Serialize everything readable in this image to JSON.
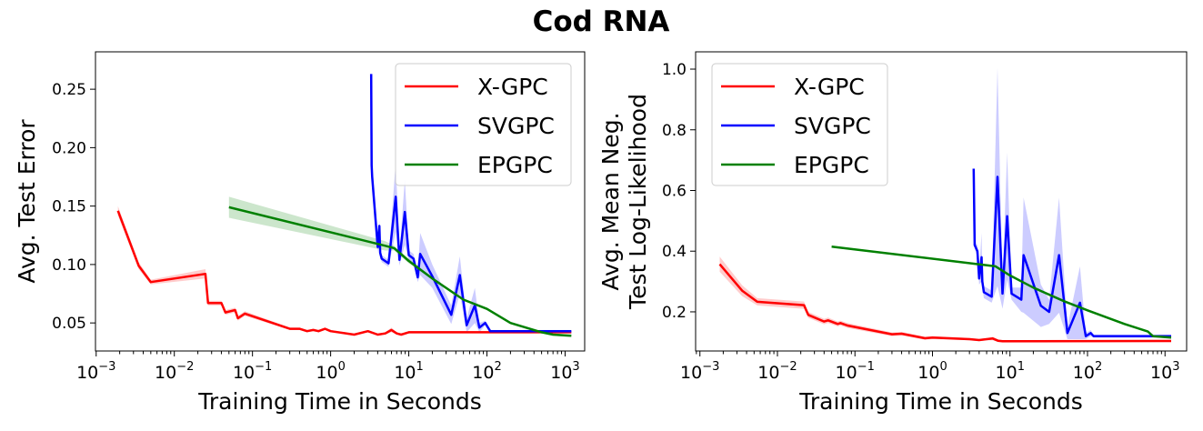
{
  "title": "Cod RNA",
  "chart_data": [
    {
      "type": "line",
      "xlabel": "Training Time in Seconds",
      "ylabel": [
        "Avg. Test Error"
      ],
      "xscale": "log",
      "xlim": [
        0.00098,
        1780
      ],
      "ylim": [
        0.026,
        0.282
      ],
      "xticks": [
        {
          "base": "10",
          "exp": "−3"
        },
        {
          "base": "10",
          "exp": "−2"
        },
        {
          "base": "10",
          "exp": "−1"
        },
        {
          "base": "10",
          "exp": "0"
        },
        {
          "base": "10",
          "exp": "1"
        },
        {
          "base": "10",
          "exp": "2"
        },
        {
          "base": "10",
          "exp": "3"
        }
      ],
      "yticks": [
        "0.05",
        "0.10",
        "0.15",
        "0.20",
        "0.25"
      ],
      "legend_position": "top-right",
      "grid": false,
      "series": [
        {
          "name": "X-GPC",
          "color": "#ff0000",
          "x": [
            0.0019,
            0.0035,
            0.005,
            0.025,
            0.027,
            0.04,
            0.045,
            0.06,
            0.065,
            0.08,
            0.3,
            0.4,
            0.5,
            0.6,
            0.7,
            0.85,
            1,
            2,
            3,
            4,
            5,
            6,
            7,
            8,
            10,
            1200
          ],
          "y": [
            0.146,
            0.099,
            0.085,
            0.092,
            0.067,
            0.067,
            0.059,
            0.061,
            0.054,
            0.058,
            0.045,
            0.045,
            0.043,
            0.044,
            0.043,
            0.045,
            0.043,
            0.04,
            0.043,
            0.04,
            0.041,
            0.044,
            0.041,
            0.04,
            0.042,
            0.042
          ],
          "spread": [
            0.004,
            0.003,
            0.002,
            0.004,
            0.002,
            0.002,
            0.002,
            0.002,
            0.002,
            0.002,
            0.001,
            0.001,
            0.001,
            0.001,
            0.001,
            0.001,
            0.001,
            0.001,
            0.001,
            0.001,
            0.001,
            0.002,
            0.001,
            0.001,
            0.001,
            0.001
          ]
        },
        {
          "name": "SVGPC",
          "color": "#0000ff",
          "x": [
            3.3,
            3.35,
            3.4,
            4,
            4.2,
            4.3,
            4.5,
            5.5,
            6.8,
            7.6,
            8.9,
            10,
            11.5,
            13,
            14,
            20,
            35,
            45,
            55,
            70,
            80,
            95,
            110,
            1200
          ],
          "y": [
            0.263,
            0.185,
            0.175,
            0.115,
            0.133,
            0.11,
            0.105,
            0.101,
            0.158,
            0.104,
            0.145,
            0.108,
            0.105,
            0.089,
            0.109,
            0.09,
            0.057,
            0.091,
            0.048,
            0.065,
            0.046,
            0.05,
            0.043,
            0.043
          ],
          "spread": [
            0,
            0.002,
            0.01,
            0.005,
            0.005,
            0.003,
            0.003,
            0.003,
            0.03,
            0.005,
            0.028,
            0.004,
            0.004,
            0.004,
            0.018,
            0.01,
            0.008,
            0.016,
            0.006,
            0.015,
            0.004,
            0.002,
            0.001,
            0.001
          ]
        },
        {
          "name": "EPGPC",
          "color": "#008000",
          "x": [
            0.05,
            5,
            6.5,
            10,
            20,
            50,
            100,
            200,
            500,
            700,
            1200
          ],
          "y": [
            0.149,
            0.116,
            0.114,
            0.103,
            0.088,
            0.07,
            0.062,
            0.05,
            0.042,
            0.04,
            0.039
          ],
          "spread": [
            0.009,
            0.004,
            0.002,
            0.002,
            0.001,
            0.001,
            0.001,
            0.001,
            0.001,
            0.001,
            0.001
          ]
        }
      ]
    },
    {
      "type": "line",
      "xlabel": "Training Time in Seconds",
      "ylabel": [
        "Avg. Mean Neg.",
        "Test Log-Likelihood"
      ],
      "xscale": "log",
      "xlim": [
        0.00088,
        1900
      ],
      "ylim": [
        0.071,
        1.057
      ],
      "xticks": [
        {
          "base": "10",
          "exp": "−3"
        },
        {
          "base": "10",
          "exp": "−2"
        },
        {
          "base": "10",
          "exp": "−1"
        },
        {
          "base": "10",
          "exp": "0"
        },
        {
          "base": "10",
          "exp": "1"
        },
        {
          "base": "10",
          "exp": "2"
        },
        {
          "base": "10",
          "exp": "3"
        }
      ],
      "yticks": [
        "0.2",
        "0.4",
        "0.6",
        "0.8",
        "1.0"
      ],
      "legend_position": "top-left",
      "grid": false,
      "series": [
        {
          "name": "X-GPC",
          "color": "#ff0000",
          "x": [
            0.0018,
            0.0035,
            0.0055,
            0.022,
            0.025,
            0.04,
            0.045,
            0.06,
            0.065,
            0.08,
            0.3,
            0.4,
            0.8,
            1,
            3,
            4,
            5,
            6,
            7,
            8,
            1200
          ],
          "y": [
            0.357,
            0.27,
            0.233,
            0.222,
            0.19,
            0.168,
            0.172,
            0.16,
            0.163,
            0.155,
            0.126,
            0.128,
            0.113,
            0.115,
            0.11,
            0.107,
            0.11,
            0.112,
            0.105,
            0.103,
            0.104
          ],
          "spread": [
            0.025,
            0.018,
            0.012,
            0.012,
            0.01,
            0.009,
            0.009,
            0.008,
            0.008,
            0.008,
            0.006,
            0.006,
            0.005,
            0.005,
            0.004,
            0.004,
            0.004,
            0.006,
            0.004,
            0.004,
            0.004
          ]
        },
        {
          "name": "SVGPC",
          "color": "#0000ff",
          "x": [
            3.4,
            3.5,
            3.8,
            4,
            4.3,
            4.4,
            4.6,
            5.8,
            6.9,
            8,
            9.2,
            10.5,
            14,
            15,
            25,
            32,
            43,
            55,
            80,
            95,
            110,
            120,
            1200
          ],
          "y": [
            0.672,
            0.42,
            0.4,
            0.31,
            0.38,
            0.3,
            0.265,
            0.25,
            0.645,
            0.26,
            0.515,
            0.26,
            0.24,
            0.387,
            0.22,
            0.2,
            0.387,
            0.13,
            0.23,
            0.12,
            0.13,
            0.12,
            0.12
          ],
          "spread": [
            0,
            0.01,
            0.02,
            0.02,
            0.08,
            0.02,
            0.02,
            0.02,
            0.36,
            0.05,
            0.21,
            0.02,
            0.04,
            0.19,
            0.07,
            0.04,
            0.19,
            0.02,
            0.12,
            0.01,
            0.01,
            0.005,
            0.005
          ]
        },
        {
          "name": "EPGPC",
          "color": "#008000",
          "x": [
            0.05,
            6.5,
            10,
            20,
            50,
            100,
            300,
            600,
            700,
            1200
          ],
          "y": [
            0.415,
            0.35,
            0.32,
            0.28,
            0.235,
            0.205,
            0.16,
            0.135,
            0.12,
            0.115
          ],
          "spread": [
            0.003,
            0.003,
            0.003,
            0.003,
            0.003,
            0.003,
            0.003,
            0.003,
            0.003,
            0.003
          ]
        }
      ]
    }
  ]
}
